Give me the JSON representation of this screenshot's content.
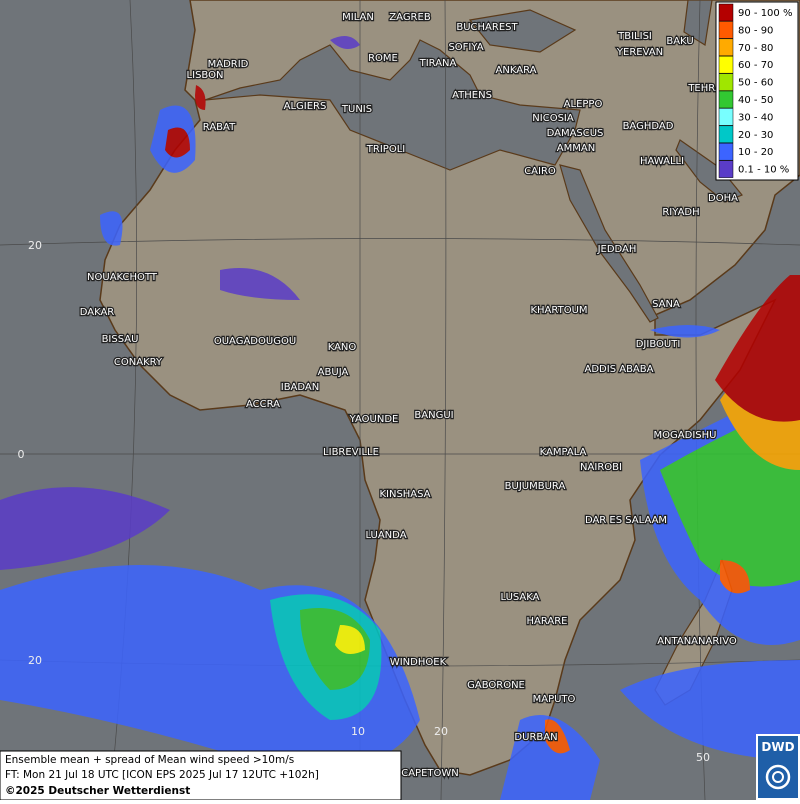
{
  "legend": {
    "items": [
      {
        "label": "90 - 100 %",
        "color": "#b40000"
      },
      {
        "label": "80 - 90",
        "color": "#ff5a00"
      },
      {
        "label": "70 - 80",
        "color": "#ffaa00"
      },
      {
        "label": "60 - 70",
        "color": "#ffff00"
      },
      {
        "label": "50 - 60",
        "color": "#a0e600"
      },
      {
        "label": "40 - 50",
        "color": "#32c832"
      },
      {
        "label": "30 - 40",
        "color": "#78ffff"
      },
      {
        "label": "20 - 30",
        "color": "#00c8c8"
      },
      {
        "label": "10 - 20",
        "color": "#3c64ff"
      },
      {
        "label": "0.1 - 10 %",
        "color": "#5a3cc8"
      }
    ]
  },
  "cities": [
    "MILAN",
    "ZAGREB",
    "BUCHAREST",
    "TBILISI",
    "BAKU",
    "MADRID",
    "ROME",
    "SOFIYA",
    "TIRANA",
    "ANKARA",
    "YEREVAN",
    "TEHRA",
    "LISBON",
    "ATHENS",
    "ALGIERS",
    "TUNIS",
    "ALEPPO",
    "NICOSIA",
    "BAGHDAD",
    "RABAT",
    "DAMASCUS",
    "AMMAN",
    "TRIPOLI",
    "HAWALLI",
    "CAIRO",
    "DOHA",
    "RIYADH",
    "JEDDAH",
    "NOUAKCHOTT",
    "SANA",
    "DAKAR",
    "KHARTOUM",
    "BISSAU",
    "OUAGADOUGOU",
    "KANO",
    "DJIBOUTI",
    "CONAKRY",
    "ABUJA",
    "ADDIS ABABA",
    "IBADAN",
    "ACCRA",
    "YAOUNDE",
    "BANGUI",
    "MOGADISHU",
    "LIBREVILLE",
    "KAMPALA",
    "NAIROBI",
    "KINSHASA",
    "BUJUMBURA",
    "DAR ES SALAAM",
    "LUANDA",
    "LUSAKA",
    "HARARE",
    "ANTANANARIVO",
    "WINDHOEK",
    "GABORONE",
    "MAPUTO",
    "DURBAN",
    "CAPETOWN"
  ],
  "grid_labels": [
    "20",
    "0",
    "20",
    "10",
    "20",
    "50"
  ],
  "footer": {
    "line1": "Ensemble mean + spread of Mean wind speed >10m/s",
    "line2": "FT: Mon 21 Jul 18 UTC [ICON EPS 2025 Jul 17 12UTC +102h]",
    "line3": "©2025 Deutscher Wetterdienst"
  },
  "logo": "DWD"
}
